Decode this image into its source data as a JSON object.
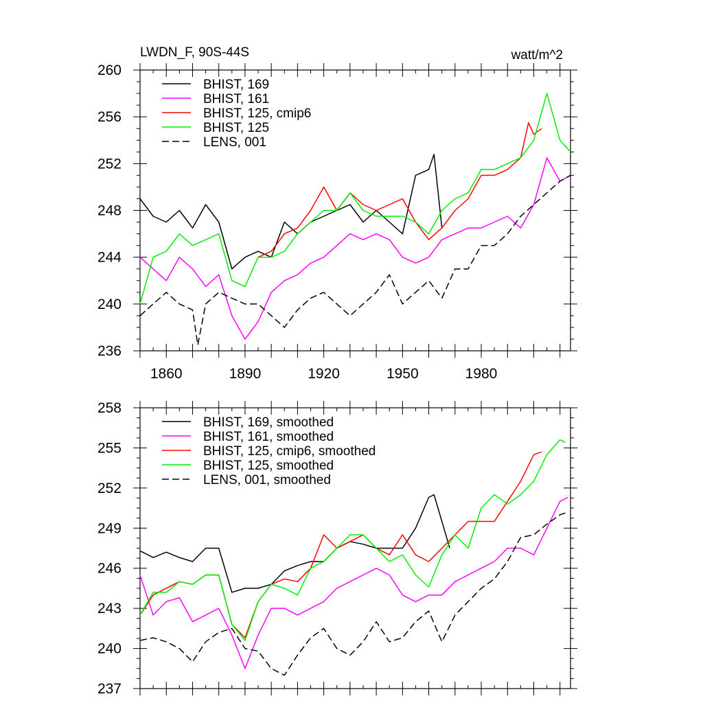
{
  "chart_data": [
    {
      "type": "line",
      "title": "LWDN_F, 90S-44S",
      "units": "watt/m^2",
      "xlabel": "",
      "ylabel": "",
      "xlim": [
        1850,
        2014
      ],
      "ylim": [
        236,
        260
      ],
      "xticks": [
        1860,
        1890,
        1920,
        1950,
        1980
      ],
      "yticks": [
        236,
        240,
        244,
        248,
        252,
        256,
        260
      ],
      "legend_position": "top-left",
      "series": [
        {
          "name": "BHIST, 169",
          "color": "#000000",
          "dash": "solid",
          "x": [
            1850,
            1855,
            1860,
            1865,
            1870,
            1875,
            1880,
            1885,
            1890,
            1895,
            1900,
            1905,
            1910,
            1915,
            1920,
            1925,
            1930,
            1935,
            1940,
            1945,
            1950,
            1955,
            1960,
            1962,
            1965
          ],
          "values": [
            249.0,
            247.5,
            247.0,
            248.0,
            246.5,
            248.5,
            247.0,
            243.0,
            244.0,
            244.5,
            244.0,
            247.0,
            246.0,
            247.0,
            247.5,
            248.0,
            248.5,
            247.0,
            248.0,
            247.0,
            246.0,
            251.0,
            251.5,
            252.8,
            246.5
          ]
        },
        {
          "name": "BHIST, 161",
          "color": "#ff00ff",
          "dash": "solid",
          "x": [
            1850,
            1855,
            1860,
            1865,
            1870,
            1875,
            1880,
            1885,
            1890,
            1895,
            1900,
            1905,
            1910,
            1915,
            1920,
            1925,
            1930,
            1935,
            1940,
            1945,
            1950,
            1955,
            1960,
            1965,
            1970,
            1975,
            1980,
            1985,
            1990,
            1995,
            2000,
            2005,
            2010,
            2014
          ],
          "values": [
            244.0,
            243.0,
            242.0,
            244.0,
            243.0,
            241.5,
            242.5,
            239.0,
            237.0,
            238.5,
            241.0,
            242.0,
            242.5,
            243.5,
            244.0,
            245.0,
            246.0,
            245.5,
            246.0,
            245.5,
            244.0,
            243.5,
            244.0,
            245.5,
            246.0,
            246.5,
            246.5,
            247.0,
            247.5,
            246.5,
            248.5,
            252.5,
            250.5,
            251.0
          ]
        },
        {
          "name": "BHIST, 125, cmip6",
          "color": "#ff0000",
          "dash": "solid",
          "x": [
            1895,
            1900,
            1905,
            1910,
            1915,
            1920,
            1925,
            1930,
            1935,
            1940,
            1945,
            1950,
            1955,
            1960,
            1965,
            1970,
            1975,
            1980,
            1985,
            1990,
            1995,
            1998,
            2000,
            2003
          ],
          "values": [
            244.0,
            244.5,
            246.0,
            246.5,
            248.0,
            250.0,
            248.0,
            249.5,
            248.5,
            248.0,
            248.5,
            249.0,
            247.0,
            245.5,
            246.5,
            248.0,
            249.0,
            251.0,
            251.0,
            251.5,
            252.5,
            255.5,
            254.5,
            255.0
          ]
        },
        {
          "name": "BHIST, 125",
          "color": "#00ee00",
          "dash": "solid",
          "x": [
            1850,
            1855,
            1860,
            1865,
            1870,
            1875,
            1880,
            1885,
            1890,
            1895,
            1900,
            1905,
            1910,
            1915,
            1920,
            1925,
            1930,
            1935,
            1940,
            1945,
            1950,
            1955,
            1960,
            1965,
            1970,
            1975,
            1980,
            1985,
            1990,
            1995,
            2000,
            2005,
            2010,
            2014
          ],
          "values": [
            240.0,
            244.0,
            244.5,
            246.0,
            245.0,
            245.5,
            246.0,
            242.0,
            241.5,
            244.0,
            244.0,
            244.5,
            246.0,
            247.0,
            248.0,
            248.0,
            249.5,
            248.0,
            247.5,
            247.5,
            247.5,
            247.0,
            246.0,
            248.0,
            249.0,
            249.5,
            251.5,
            251.5,
            252.0,
            252.5,
            254.0,
            258.0,
            254.0,
            253.0
          ]
        },
        {
          "name": "LENS, 001",
          "color": "#000000",
          "dash": "dashed",
          "x": [
            1850,
            1855,
            1860,
            1865,
            1870,
            1872,
            1875,
            1880,
            1885,
            1890,
            1895,
            1900,
            1905,
            1910,
            1915,
            1920,
            1925,
            1930,
            1935,
            1940,
            1945,
            1950,
            1955,
            1960,
            1965,
            1970,
            1975,
            1980,
            1985,
            1990,
            1995,
            2000,
            2005,
            2010,
            2014
          ],
          "values": [
            239.0,
            240.0,
            241.0,
            240.0,
            239.5,
            236.5,
            240.0,
            241.0,
            240.5,
            240.0,
            240.0,
            239.0,
            238.0,
            239.5,
            240.5,
            241.0,
            240.0,
            239.0,
            240.0,
            241.0,
            242.5,
            240.0,
            241.0,
            242.0,
            240.5,
            243.0,
            243.0,
            245.0,
            245.0,
            246.0,
            247.5,
            248.5,
            249.5,
            250.5,
            251.0
          ]
        }
      ]
    },
    {
      "type": "line",
      "title": "",
      "xlabel": "",
      "ylabel": "",
      "xlim": [
        1850,
        2014
      ],
      "ylim": [
        237,
        258
      ],
      "xticks": [
        1860,
        1890,
        1920,
        1950,
        1980
      ],
      "yticks": [
        237,
        240,
        243,
        246,
        249,
        252,
        255,
        258
      ],
      "legend_position": "top-left",
      "series": [
        {
          "name": "BHIST, 169, smoothed",
          "color": "#000000",
          "dash": "solid",
          "x": [
            1850,
            1855,
            1860,
            1865,
            1870,
            1875,
            1880,
            1885,
            1890,
            1895,
            1900,
            1905,
            1910,
            1915,
            1920,
            1925,
            1930,
            1935,
            1940,
            1945,
            1950,
            1955,
            1960,
            1962,
            1965,
            1968
          ],
          "values": [
            247.3,
            246.8,
            247.2,
            246.8,
            246.5,
            247.5,
            247.5,
            244.2,
            244.5,
            244.5,
            244.8,
            245.8,
            246.2,
            246.5,
            246.5,
            247.5,
            248.0,
            247.8,
            247.5,
            247.5,
            247.5,
            249.0,
            251.3,
            251.5,
            249.5,
            247.5
          ]
        },
        {
          "name": "BHIST, 161, smoothed",
          "color": "#ff00ff",
          "dash": "solid",
          "x": [
            1850,
            1855,
            1860,
            1865,
            1870,
            1875,
            1880,
            1885,
            1890,
            1895,
            1900,
            1905,
            1910,
            1915,
            1920,
            1925,
            1930,
            1935,
            1940,
            1945,
            1950,
            1955,
            1960,
            1965,
            1970,
            1975,
            1980,
            1985,
            1990,
            1995,
            2000,
            2005,
            2010,
            2013
          ],
          "values": [
            245.5,
            242.5,
            243.5,
            243.8,
            242.0,
            242.5,
            243.0,
            241.0,
            238.5,
            241.0,
            243.0,
            243.0,
            242.5,
            243.0,
            243.5,
            244.5,
            245.0,
            245.5,
            246.0,
            245.5,
            244.0,
            243.5,
            244.0,
            244.0,
            245.0,
            245.5,
            246.0,
            246.5,
            247.5,
            247.5,
            247.0,
            249.0,
            251.0,
            251.3
          ]
        },
        {
          "name": "BHIST, 125, cmip6, smoothed",
          "color": "#ff0000",
          "dash": "solid",
          "x": [
            1850,
            1855,
            1860,
            1865,
            1870,
            1875,
            1880,
            1885,
            1890,
            1895,
            1900,
            1905,
            1910,
            1915,
            1920,
            1925,
            1930,
            1935,
            1940,
            1945,
            1950,
            1955,
            1960,
            1965,
            1970,
            1975,
            1980,
            1985,
            1990,
            1995,
            2000,
            2003
          ],
          "values": [
            242.5,
            244.0,
            244.5,
            245.0,
            244.8,
            245.5,
            245.5,
            241.8,
            240.8,
            243.5,
            244.8,
            245.2,
            245.0,
            246.0,
            248.5,
            247.5,
            248.0,
            248.5,
            247.5,
            247.0,
            248.5,
            247.0,
            246.5,
            247.5,
            248.5,
            249.5,
            249.5,
            249.5,
            251.0,
            252.5,
            254.5,
            254.7
          ]
        },
        {
          "name": "BHIST, 125, smoothed",
          "color": "#00ee00",
          "dash": "solid",
          "x": [
            1850,
            1855,
            1860,
            1865,
            1870,
            1875,
            1880,
            1885,
            1890,
            1895,
            1900,
            1905,
            1910,
            1915,
            1920,
            1925,
            1930,
            1935,
            1940,
            1945,
            1950,
            1955,
            1960,
            1965,
            1970,
            1975,
            1980,
            1985,
            1990,
            1995,
            2000,
            2005,
            2010,
            2012
          ],
          "values": [
            242.5,
            244.2,
            244.2,
            245.0,
            244.8,
            245.5,
            245.5,
            241.8,
            240.6,
            243.5,
            244.8,
            244.5,
            244.0,
            246.0,
            246.5,
            247.5,
            248.5,
            248.5,
            247.5,
            246.5,
            247.0,
            245.5,
            244.6,
            247.0,
            248.5,
            247.5,
            250.5,
            251.5,
            250.8,
            251.5,
            252.5,
            254.5,
            255.6,
            255.4
          ]
        },
        {
          "name": "LENS, 001, smoothed",
          "color": "#000000",
          "dash": "dashed",
          "x": [
            1850,
            1855,
            1860,
            1865,
            1870,
            1875,
            1880,
            1885,
            1890,
            1895,
            1900,
            1905,
            1910,
            1915,
            1920,
            1925,
            1930,
            1935,
            1940,
            1945,
            1950,
            1955,
            1960,
            1965,
            1970,
            1975,
            1980,
            1985,
            1990,
            1995,
            2000,
            2005,
            2010,
            2013
          ],
          "values": [
            240.6,
            240.8,
            240.5,
            240.0,
            239.0,
            240.5,
            241.2,
            241.5,
            240.0,
            239.8,
            238.5,
            238.0,
            239.5,
            240.8,
            241.5,
            240.0,
            239.5,
            240.5,
            242.0,
            240.5,
            240.8,
            242.0,
            242.8,
            240.5,
            242.5,
            243.5,
            244.5,
            245.2,
            246.5,
            248.3,
            248.5,
            249.3,
            250.0,
            250.2
          ]
        }
      ]
    }
  ]
}
